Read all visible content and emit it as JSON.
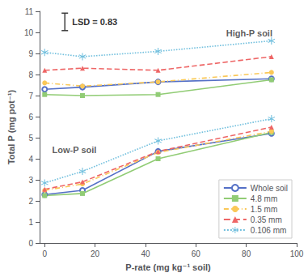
{
  "chart_data": {
    "type": "line",
    "xlabel": "P-rate (mg kg⁻¹ soil)",
    "ylabel": "Total P (mg pot⁻¹)",
    "x": [
      0,
      15,
      45,
      90
    ],
    "xlim": [
      -2,
      100
    ],
    "ylim": [
      0,
      11
    ],
    "xticks": [
      0,
      20,
      40,
      60,
      80,
      100
    ],
    "yticks": [
      0,
      1,
      2,
      3,
      4,
      5,
      6,
      7,
      8,
      9,
      10,
      11
    ],
    "grid": false,
    "legend": "lower right",
    "series": [
      {
        "name": "Whole soil",
        "marker": "open circle",
        "line_style": "solid",
        "values": [
          7.3,
          7.4,
          7.65,
          7.8
        ]
      },
      {
        "name": "4.8 mm",
        "marker": "square",
        "line_style": "solid",
        "values": [
          7.05,
          7.0,
          7.05,
          7.75
        ]
      },
      {
        "name": "1.5 mm",
        "marker": "circle",
        "line_style": "dashdot",
        "values": [
          7.6,
          7.45,
          7.65,
          8.1
        ]
      },
      {
        "name": "0.35 mm",
        "marker": "triangle",
        "line_style": "dashed",
        "values": [
          8.2,
          8.3,
          8.2,
          8.85
        ]
      },
      {
        "name": "0.106 mm",
        "marker": "asterisk",
        "line_style": "dotted",
        "values": [
          9.05,
          8.85,
          9.1,
          9.6
        ]
      },
      {
        "name": "Whole soil",
        "marker": "open circle",
        "line_style": "solid",
        "values": [
          2.3,
          2.5,
          4.35,
          5.2
        ]
      },
      {
        "name": "4.8 mm",
        "marker": "square",
        "line_style": "solid",
        "values": [
          2.25,
          2.35,
          4.0,
          5.25
        ]
      },
      {
        "name": "1.5 mm",
        "marker": "circle",
        "line_style": "dashdot",
        "values": [
          2.5,
          2.8,
          4.3,
          5.3
        ]
      },
      {
        "name": "0.35 mm",
        "marker": "triangle",
        "line_style": "dashed",
        "values": [
          2.55,
          2.9,
          4.35,
          5.5
        ]
      },
      {
        "name": "0.106 mm",
        "marker": "asterisk",
        "line_style": "dotted",
        "values": [
          2.85,
          3.4,
          4.85,
          5.9
        ]
      }
    ],
    "annotations": [
      {
        "text": "High-P soil",
        "x": 72,
        "y": 9.75
      },
      {
        "text": "Low-P soil",
        "x": 3,
        "y": 4.2
      }
    ],
    "lsd": {
      "value": 0.83,
      "x": 8,
      "y": 10.5,
      "label": "LSD = 0.83"
    }
  }
}
